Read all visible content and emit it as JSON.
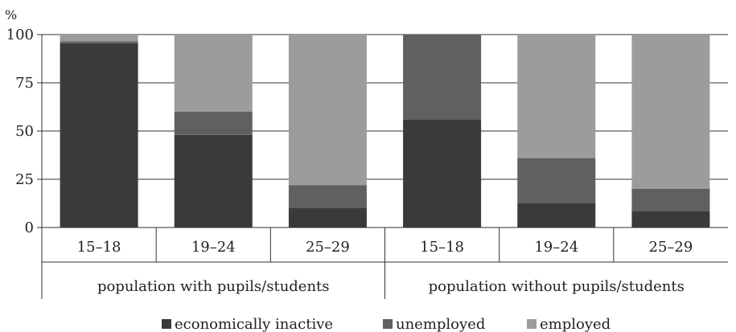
{
  "chart_data": {
    "type": "bar",
    "stacked": true,
    "ylabel": "%",
    "ylim": [
      0,
      100
    ],
    "yticks": [
      0,
      25,
      50,
      75,
      100
    ],
    "grid": "horizontal",
    "legend_position": "bottom",
    "categories": [
      "15–18",
      "19–24",
      "25–29",
      "15–18",
      "19–24",
      "25–29"
    ],
    "groups": [
      {
        "label": "population with pupils/students",
        "categories": [
          "15–18",
          "19–24",
          "25–29"
        ]
      },
      {
        "label": "population without pupils/students",
        "categories": [
          "15–18",
          "19–24",
          "25–29"
        ]
      }
    ],
    "series": [
      {
        "name": "economically inactive",
        "color": "#3a3a3a",
        "values": [
          95.5,
          48,
          10,
          56,
          12.5,
          8.5
        ]
      },
      {
        "name": "unemployed",
        "color": "#606060",
        "values": [
          1,
          12,
          12,
          44,
          23.5,
          11.5
        ]
      },
      {
        "name": "employed",
        "color": "#9c9c9c",
        "values": [
          3.5,
          40,
          78,
          0,
          64,
          80
        ]
      }
    ]
  }
}
